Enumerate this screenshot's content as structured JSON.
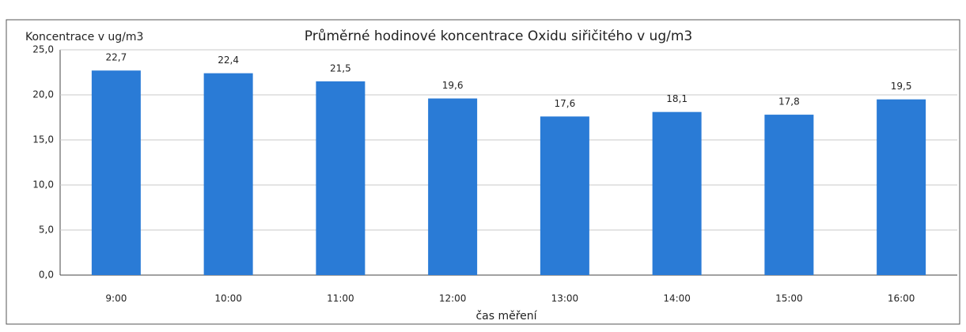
{
  "chart_data": {
    "type": "bar",
    "title": "Průměrné hodinové koncentrace Oxidu siřičitého v  ug/m3",
    "y_label": "Koncentrace v ug/m3",
    "x_label": "čas měření",
    "categories": [
      "9:00",
      "10:00",
      "11:00",
      "12:00",
      "13:00",
      "14:00",
      "15:00",
      "16:00"
    ],
    "values": [
      22.7,
      22.4,
      21.5,
      19.6,
      17.6,
      18.1,
      17.8,
      19.5
    ],
    "value_labels": [
      "22,7",
      "22,4",
      "21,5",
      "19,6",
      "17,6",
      "18,1",
      "17,8",
      "19,5"
    ],
    "color": "#2a7bd6",
    "ylim": [
      0,
      25
    ],
    "yticks": [
      {
        "value": 0,
        "label": "0,0"
      },
      {
        "value": 5,
        "label": "5,0"
      },
      {
        "value": 10,
        "label": "10,0"
      },
      {
        "value": 15,
        "label": "15,0"
      },
      {
        "value": 20,
        "label": "20,0"
      },
      {
        "value": 25,
        "label": "25,0"
      }
    ],
    "grid": true
  }
}
